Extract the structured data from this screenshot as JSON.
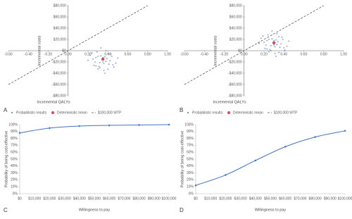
{
  "chart_data": [
    {
      "type": "scatter",
      "panel": "A",
      "xlabel": "Incremental QALYs",
      "ylabel": "Incremental costs",
      "xlim": [
        -0.6,
        1.0
      ],
      "ylim": [
        -80000,
        80000
      ],
      "xticks": [
        {
          "value": -0.6,
          "label": "-0.60"
        },
        {
          "value": -0.4,
          "label": "-0.40"
        },
        {
          "value": -0.2,
          "label": "-0.20"
        },
        {
          "value": 0,
          "label": "0.00"
        },
        {
          "value": 0.2,
          "label": "0.20"
        },
        {
          "value": 0.4,
          "label": "0.40"
        },
        {
          "value": 0.6,
          "label": "0.60"
        },
        {
          "value": 0.8,
          "label": "0.80"
        },
        {
          "value": 1.0,
          "label": "1.00"
        }
      ],
      "yticks": [
        {
          "value": 80000,
          "label": "$80,000"
        },
        {
          "value": 60000,
          "label": "$60,000"
        },
        {
          "value": 40000,
          "label": "$40,000"
        },
        {
          "value": 20000,
          "label": "$20,000"
        },
        {
          "value": 0,
          "label": "$0"
        },
        {
          "value": -20000,
          "label": "-$20,000"
        },
        {
          "value": -40000,
          "label": "-$40,000"
        },
        {
          "value": -60000,
          "label": "-$60,000"
        },
        {
          "value": -80000,
          "label": "-$80,000"
        }
      ],
      "series": [
        {
          "name": "Probabilistic results",
          "mode": "points",
          "color": "#4472c4",
          "x": [
            0.3,
            0.35,
            0.4,
            0.25,
            0.45,
            0.32,
            0.38,
            0.28,
            0.42,
            0.36,
            0.22,
            0.48,
            0.33,
            0.31,
            0.39,
            0.27,
            0.44,
            0.37,
            0.29,
            0.41,
            0.34,
            0.26,
            0.43,
            0.35,
            0.3,
            0.38,
            0.2,
            0.5,
            0.36,
            0.33,
            0.24,
            0.46,
            0.4,
            0.32,
            0.37,
            0.28
          ],
          "values": [
            -10000,
            -20000,
            -5000,
            -15000,
            -25000,
            -30000,
            0,
            -12000,
            -18000,
            -35000,
            -8000,
            -22000,
            5000,
            -28000,
            -14000,
            -20000,
            -10000,
            -40000,
            -2000,
            -24000,
            -16000,
            -26000,
            -6000,
            -12000,
            -32000,
            -19000,
            -17000,
            -13000,
            -23000,
            -9000,
            -4000,
            -29000,
            -33000,
            -21000,
            -11000,
            -27000
          ]
        },
        {
          "name": "Deterministic mean",
          "mode": "mean",
          "color": "#e0474c",
          "x": [
            0.35
          ],
          "values": [
            -15000
          ]
        },
        {
          "name": "$100,000 WTP",
          "mode": "dashed",
          "color": "#595959",
          "x": [
            -0.6,
            0.8
          ],
          "values": [
            -60000,
            80000
          ]
        }
      ]
    },
    {
      "type": "scatter",
      "panel": "B",
      "xlabel": "Incremental QALYs",
      "ylabel": "Incremental costs",
      "xlim": [
        -0.6,
        1.0
      ],
      "ylim": [
        -80000,
        80000
      ],
      "xticks": [
        {
          "value": -0.6,
          "label": "-0.60"
        },
        {
          "value": -0.4,
          "label": "-0.40"
        },
        {
          "value": -0.2,
          "label": "-0.20"
        },
        {
          "value": 0,
          "label": "0.00"
        },
        {
          "value": 0.2,
          "label": "0.20"
        },
        {
          "value": 0.4,
          "label": "0.40"
        },
        {
          "value": 0.6,
          "label": "0.60"
        },
        {
          "value": 0.8,
          "label": "0.80"
        },
        {
          "value": 1.0,
          "label": "1.00"
        }
      ],
      "yticks": [
        {
          "value": 80000,
          "label": "$80,000"
        },
        {
          "value": 60000,
          "label": "$60,000"
        },
        {
          "value": 40000,
          "label": "$40,000"
        },
        {
          "value": 20000,
          "label": "$20,000"
        },
        {
          "value": 0,
          "label": "$0"
        },
        {
          "value": -20000,
          "label": "-$20,000"
        },
        {
          "value": -40000,
          "label": "-$40,000"
        },
        {
          "value": -60000,
          "label": "-$60,000"
        },
        {
          "value": -80000,
          "label": "-$80,000"
        }
      ],
      "series": [
        {
          "name": "Probabilistic results",
          "mode": "points",
          "color": "#4472c4",
          "x": [
            0.25,
            0.3,
            0.35,
            0.2,
            0.4,
            0.27,
            0.33,
            0.23,
            0.37,
            0.31,
            0.17,
            0.43,
            0.28,
            0.26,
            0.34,
            0.22,
            0.39,
            0.32,
            0.24,
            0.36,
            0.29,
            0.21,
            0.38,
            0.3,
            0.25,
            0.33,
            0.15,
            0.45,
            0.31,
            0.28,
            0.19,
            0.41,
            0.35,
            0.27,
            0.32,
            0.23
          ],
          "values": [
            20000,
            10000,
            25000,
            15000,
            5000,
            0,
            30000,
            18000,
            12000,
            -5000,
            22000,
            8000,
            35000,
            2000,
            16000,
            10000,
            20000,
            -10000,
            28000,
            6000,
            14000,
            4000,
            24000,
            18000,
            -2000,
            11000,
            13000,
            17000,
            7000,
            21000,
            26000,
            1000,
            -3000,
            9000,
            19000,
            3000
          ]
        },
        {
          "name": "Deterministic mean",
          "mode": "mean",
          "color": "#e0474c",
          "x": [
            0.3
          ],
          "values": [
            14000
          ]
        },
        {
          "name": "$100,000 WTP",
          "mode": "dashed",
          "color": "#595959",
          "x": [
            -0.6,
            0.8
          ],
          "values": [
            -60000,
            80000
          ]
        }
      ]
    },
    {
      "type": "line",
      "panel": "C",
      "xlabel": "Willingness to pay",
      "ylabel": "Probability of being cost-effective",
      "xlim": [
        0,
        100000
      ],
      "ylim": [
        0,
        100
      ],
      "color": "#4472c4",
      "xticks": [
        {
          "value": 0,
          "label": "$0"
        },
        {
          "value": 10000,
          "label": "$10,000"
        },
        {
          "value": 20000,
          "label": "$20,000"
        },
        {
          "value": 30000,
          "label": "$30,000"
        },
        {
          "value": 40000,
          "label": "$40,000"
        },
        {
          "value": 50000,
          "label": "$50,000"
        },
        {
          "value": 60000,
          "label": "$60,000"
        },
        {
          "value": 70000,
          "label": "$70,000"
        },
        {
          "value": 80000,
          "label": "$80,000"
        },
        {
          "value": 90000,
          "label": "$90,000"
        },
        {
          "value": 100000,
          "label": "$100,000"
        }
      ],
      "yticks": [
        {
          "value": 0,
          "label": "0%"
        },
        {
          "value": 10,
          "label": "10%"
        },
        {
          "value": 20,
          "label": "20%"
        },
        {
          "value": 30,
          "label": "30%"
        },
        {
          "value": 40,
          "label": "40%"
        },
        {
          "value": 50,
          "label": "50%"
        },
        {
          "value": 60,
          "label": "60%"
        },
        {
          "value": 70,
          "label": "70%"
        },
        {
          "value": 80,
          "label": "80%"
        },
        {
          "value": 90,
          "label": "90%"
        },
        {
          "value": 100,
          "label": "100%"
        }
      ],
      "x": [
        0,
        20000,
        40000,
        60000,
        80000,
        100000
      ],
      "values": [
        88,
        95,
        98,
        99,
        99.5,
        100
      ]
    },
    {
      "type": "line",
      "panel": "D",
      "xlabel": "Willingness to pay",
      "ylabel": "Probability of being cost-effective",
      "xlim": [
        0,
        100000
      ],
      "ylim": [
        0,
        100
      ],
      "color": "#4472c4",
      "xticks": [
        {
          "value": 0,
          "label": "$0"
        },
        {
          "value": 10000,
          "label": "$10,000"
        },
        {
          "value": 20000,
          "label": "$20,000"
        },
        {
          "value": 30000,
          "label": "$30,000"
        },
        {
          "value": 40000,
          "label": "$40,000"
        },
        {
          "value": 50000,
          "label": "$50,000"
        },
        {
          "value": 60000,
          "label": "$60,000"
        },
        {
          "value": 70000,
          "label": "$70,000"
        },
        {
          "value": 80000,
          "label": "$80,000"
        },
        {
          "value": 90000,
          "label": "$90,000"
        },
        {
          "value": 100000,
          "label": "$100,000"
        }
      ],
      "yticks": [
        {
          "value": 0,
          "label": "0%"
        },
        {
          "value": 10,
          "label": "10%"
        },
        {
          "value": 20,
          "label": "20%"
        },
        {
          "value": 30,
          "label": "30%"
        },
        {
          "value": 40,
          "label": "40%"
        },
        {
          "value": 50,
          "label": "50%"
        },
        {
          "value": 60,
          "label": "60%"
        },
        {
          "value": 70,
          "label": "70%"
        },
        {
          "value": 80,
          "label": "80%"
        },
        {
          "value": 90,
          "label": "90%"
        },
        {
          "value": 100,
          "label": "100%"
        }
      ],
      "x": [
        0,
        20000,
        40000,
        60000,
        80000,
        100000
      ],
      "values": [
        12,
        27,
        48,
        68,
        82,
        91
      ]
    }
  ]
}
